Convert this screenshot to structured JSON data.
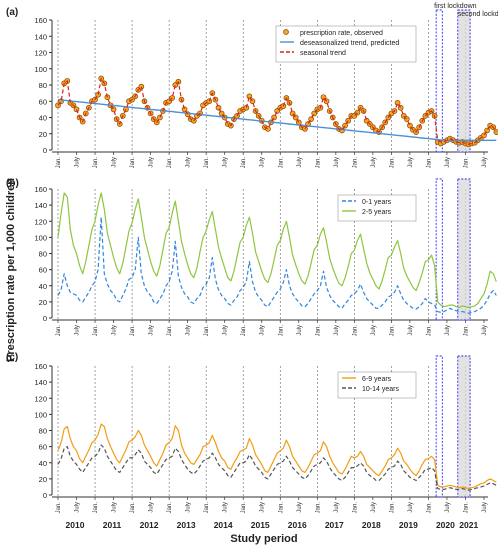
{
  "y_axis_label": "Prescription rate per 1,000 children",
  "x_axis_label": "Study period",
  "chart_data": [
    {
      "type": "line",
      "panel_label": "(a)",
      "ylim": [
        0,
        160
      ],
      "yticks": [
        0,
        20,
        40,
        60,
        80,
        100,
        120,
        140,
        160
      ],
      "grid": "vertical dashed line at each January",
      "legend_placement": "top-right",
      "annotations": [
        "first lockdown",
        "second lockdown"
      ],
      "series": [
        {
          "name": "prescription rate, observed",
          "style": "orange-points",
          "color": "#f39c12",
          "values": [
            55,
            60,
            82,
            85,
            58,
            55,
            50,
            40,
            35,
            45,
            52,
            60,
            62,
            68,
            88,
            82,
            65,
            55,
            50,
            38,
            32,
            42,
            50,
            60,
            62,
            66,
            74,
            78,
            60,
            52,
            45,
            38,
            34,
            40,
            48,
            58,
            60,
            64,
            80,
            84,
            62,
            50,
            44,
            38,
            36,
            42,
            45,
            55,
            58,
            60,
            70,
            62,
            52,
            45,
            40,
            32,
            30,
            38,
            42,
            48,
            50,
            52,
            66,
            60,
            48,
            42,
            36,
            28,
            26,
            34,
            40,
            48,
            52,
            54,
            64,
            58,
            45,
            40,
            34,
            28,
            26,
            32,
            38,
            45,
            50,
            52,
            65,
            60,
            48,
            40,
            32,
            26,
            24,
            30,
            36,
            42,
            42,
            46,
            52,
            48,
            36,
            32,
            28,
            24,
            22,
            28,
            34,
            40,
            45,
            48,
            58,
            52,
            42,
            38,
            30,
            25,
            22,
            28,
            36,
            42,
            46,
            48,
            42,
            10,
            8,
            10,
            12,
            14,
            12,
            10,
            9,
            10,
            8,
            7,
            8,
            9,
            12,
            15,
            18,
            24,
            30,
            28,
            22
          ]
        },
        {
          "name": "deseasonalized trend, predicted",
          "style": "blue-line",
          "color": "#4a90d9",
          "values": [
            62,
            61.6,
            61.2,
            60.8,
            60.4,
            60,
            59.6,
            59.2,
            58.8,
            58.4,
            58,
            57.6,
            57.2,
            56.8,
            56.4,
            56,
            55.6,
            55.2,
            54.8,
            54.4,
            54,
            53.6,
            53.2,
            52.8,
            52.4,
            52,
            51.6,
            51.2,
            50.8,
            50.4,
            50,
            49.6,
            49.2,
            48.8,
            48.4,
            48,
            47.6,
            47.2,
            46.8,
            46.4,
            46,
            45.6,
            45.2,
            44.8,
            44.4,
            44,
            43.6,
            43.2,
            42.8,
            42.4,
            42,
            41.6,
            41.2,
            40.8,
            40.4,
            40,
            39.6,
            39.2,
            38.8,
            38.4,
            38,
            37.6,
            37.2,
            36.8,
            36.4,
            36,
            35.6,
            35.2,
            34.8,
            34.4,
            34,
            33.6,
            33.2,
            32.8,
            32.4,
            32,
            31.6,
            31.2,
            30.8,
            30.4,
            30,
            29.6,
            29.2,
            28.8,
            28.4,
            28,
            27.6,
            27.2,
            26.8,
            26.4,
            26,
            25.6,
            25.2,
            24.8,
            24.4,
            24,
            23.6,
            23.2,
            22.8,
            22.4,
            22,
            21.6,
            21.2,
            20.8,
            20.4,
            20,
            19.6,
            19.2,
            18.8,
            18.4,
            18,
            17.6,
            17.2,
            16.8,
            16.4,
            16,
            15.6,
            15.2,
            14.8,
            14.4,
            14,
            13.6,
            13.2,
            12.8,
            12.4,
            12,
            12,
            12,
            12,
            12,
            12,
            12,
            12,
            12,
            12,
            12,
            12,
            12,
            12,
            12,
            12,
            12,
            12
          ]
        },
        {
          "name": "seasonal trend",
          "style": "red-dashed",
          "color": "#e0201b",
          "values": [
            55,
            60,
            82,
            85,
            58,
            55,
            50,
            40,
            35,
            45,
            52,
            60,
            62,
            68,
            88,
            82,
            65,
            55,
            50,
            38,
            32,
            42,
            50,
            60,
            62,
            66,
            74,
            78,
            60,
            52,
            45,
            38,
            34,
            40,
            48,
            58,
            60,
            64,
            80,
            84,
            62,
            50,
            44,
            38,
            36,
            42,
            45,
            55,
            58,
            60,
            70,
            62,
            52,
            45,
            40,
            32,
            30,
            38,
            42,
            48,
            50,
            52,
            66,
            60,
            48,
            42,
            36,
            28,
            26,
            34,
            40,
            48,
            52,
            54,
            64,
            58,
            45,
            40,
            34,
            28,
            26,
            32,
            38,
            45,
            50,
            52,
            65,
            60,
            48,
            40,
            32,
            26,
            24,
            30,
            36,
            42,
            42,
            46,
            52,
            48,
            36,
            32,
            28,
            24,
            22,
            28,
            34,
            40,
            45,
            48,
            58,
            52,
            42,
            38,
            30,
            25,
            22,
            28,
            36,
            42,
            46,
            48,
            42,
            12,
            10,
            10,
            12,
            14,
            12,
            10,
            9,
            10,
            8,
            7,
            8,
            9,
            12,
            15,
            18,
            24,
            30,
            28,
            22
          ]
        }
      ]
    },
    {
      "type": "line",
      "panel_label": "(b)",
      "ylim": [
        0,
        160
      ],
      "yticks": [
        0,
        20,
        40,
        60,
        80,
        100,
        120,
        140,
        160
      ],
      "legend_placement": "top-right",
      "series": [
        {
          "name": "0-1 years",
          "style": "blue-dashed",
          "color": "#2e86de",
          "values": [
            28,
            35,
            55,
            40,
            32,
            30,
            28,
            22,
            20,
            26,
            32,
            40,
            45,
            60,
            125,
            55,
            42,
            34,
            30,
            22,
            20,
            28,
            36,
            48,
            50,
            60,
            100,
            55,
            40,
            32,
            28,
            20,
            18,
            24,
            30,
            40,
            45,
            58,
            95,
            52,
            38,
            30,
            26,
            20,
            18,
            24,
            28,
            38,
            42,
            50,
            75,
            48,
            35,
            28,
            24,
            18,
            16,
            22,
            26,
            34,
            38,
            45,
            70,
            45,
            32,
            26,
            22,
            16,
            14,
            20,
            26,
            32,
            36,
            44,
            60,
            40,
            30,
            24,
            20,
            15,
            14,
            18,
            24,
            30,
            34,
            40,
            58,
            38,
            28,
            22,
            18,
            14,
            12,
            18,
            22,
            28,
            30,
            34,
            42,
            32,
            24,
            20,
            16,
            12,
            12,
            16,
            20,
            26,
            28,
            32,
            40,
            30,
            22,
            18,
            15,
            12,
            11,
            14,
            18,
            24,
            20,
            18,
            16,
            8,
            7,
            8,
            10,
            12,
            10,
            9,
            8,
            8,
            7,
            6,
            7,
            8,
            10,
            12,
            16,
            22,
            30,
            34,
            28
          ]
        },
        {
          "name": "2-5 years",
          "style": "green-line",
          "color": "#8dc63f",
          "values": [
            100,
            130,
            155,
            150,
            110,
            90,
            80,
            65,
            55,
            70,
            90,
            110,
            120,
            140,
            155,
            135,
            105,
            90,
            75,
            62,
            55,
            68,
            88,
            108,
            118,
            135,
            148,
            125,
            100,
            85,
            70,
            58,
            52,
            65,
            85,
            105,
            112,
            130,
            145,
            120,
            95,
            80,
            66,
            55,
            50,
            62,
            82,
            100,
            108,
            122,
            132,
            110,
            88,
            74,
            62,
            50,
            46,
            58,
            76,
            94,
            100,
            115,
            125,
            105,
            82,
            70,
            58,
            48,
            44,
            55,
            72,
            90,
            96,
            110,
            120,
            100,
            78,
            66,
            55,
            46,
            42,
            52,
            68,
            85,
            90,
            104,
            112,
            94,
            74,
            62,
            52,
            43,
            40,
            50,
            64,
            80,
            84,
            96,
            104,
            86,
            68,
            56,
            48,
            40,
            36,
            46,
            60,
            75,
            78,
            88,
            96,
            80,
            62,
            52,
            45,
            38,
            34,
            44,
            56,
            70,
            72,
            78,
            65,
            20,
            16,
            14,
            15,
            16,
            16,
            14,
            13,
            15,
            14,
            13,
            14,
            15,
            18,
            24,
            30,
            42,
            58,
            55,
            45
          ]
        }
      ]
    },
    {
      "type": "line",
      "panel_label": "(c)",
      "ylim": [
        0,
        160
      ],
      "yticks": [
        0,
        20,
        40,
        60,
        80,
        100,
        120,
        140,
        160
      ],
      "legend_placement": "top-right",
      "series": [
        {
          "name": "6-9 years",
          "style": "orange-line",
          "color": "#f39c12",
          "values": [
            55,
            65,
            82,
            85,
            70,
            60,
            55,
            45,
            40,
            48,
            56,
            65,
            68,
            75,
            88,
            85,
            70,
            60,
            52,
            44,
            40,
            48,
            56,
            66,
            68,
            72,
            80,
            74,
            62,
            55,
            48,
            40,
            36,
            44,
            52,
            62,
            65,
            70,
            86,
            80,
            62,
            52,
            46,
            40,
            38,
            44,
            50,
            60,
            62,
            65,
            74,
            65,
            54,
            46,
            42,
            34,
            32,
            40,
            46,
            54,
            56,
            58,
            70,
            62,
            50,
            44,
            38,
            30,
            28,
            36,
            44,
            52,
            55,
            58,
            68,
            60,
            48,
            42,
            36,
            30,
            28,
            34,
            42,
            50,
            52,
            55,
            66,
            60,
            48,
            40,
            34,
            28,
            26,
            32,
            40,
            48,
            46,
            48,
            54,
            48,
            38,
            34,
            30,
            26,
            24,
            30,
            36,
            44,
            46,
            50,
            58,
            52,
            42,
            38,
            32,
            27,
            24,
            30,
            38,
            44,
            45,
            48,
            44,
            12,
            10,
            10,
            11,
            12,
            11,
            10,
            9,
            10,
            9,
            8,
            9,
            10,
            12,
            14,
            15,
            18,
            20,
            18,
            16
          ]
        },
        {
          "name": "10-14 years",
          "style": "gray-dashed",
          "color": "#555555",
          "values": [
            38,
            45,
            58,
            60,
            48,
            42,
            38,
            32,
            28,
            34,
            40,
            46,
            48,
            52,
            62,
            58,
            48,
            42,
            36,
            30,
            28,
            34,
            40,
            46,
            46,
            50,
            56,
            52,
            42,
            38,
            34,
            28,
            26,
            32,
            38,
            44,
            46,
            48,
            58,
            54,
            44,
            38,
            32,
            28,
            26,
            30,
            36,
            42,
            44,
            46,
            52,
            46,
            38,
            34,
            30,
            24,
            22,
            28,
            34,
            40,
            40,
            42,
            50,
            44,
            36,
            32,
            28,
            22,
            20,
            26,
            32,
            38,
            40,
            42,
            48,
            42,
            34,
            30,
            26,
            22,
            20,
            24,
            30,
            36,
            38,
            40,
            46,
            42,
            34,
            28,
            24,
            20,
            18,
            22,
            28,
            34,
            34,
            36,
            40,
            36,
            28,
            24,
            22,
            18,
            18,
            22,
            26,
            32,
            34,
            36,
            42,
            38,
            30,
            26,
            22,
            20,
            18,
            22,
            26,
            32,
            32,
            34,
            30,
            8,
            7,
            7,
            8,
            9,
            8,
            7,
            7,
            8,
            7,
            6,
            7,
            8,
            9,
            10,
            11,
            13,
            15,
            14,
            12
          ]
        }
      ]
    }
  ],
  "x_tick_month_labels": [
    "Jan.",
    "July"
  ],
  "year_labels": [
    "2010",
    "2011",
    "2012",
    "2013",
    "2014",
    "2015",
    "2016",
    "2017",
    "2018",
    "2019",
    "2020",
    "2021"
  ]
}
